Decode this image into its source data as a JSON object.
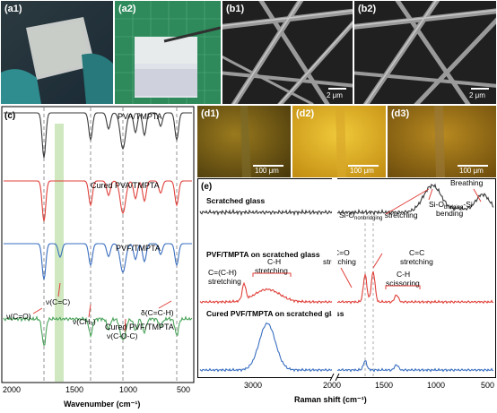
{
  "photos": {
    "a1": {
      "label": "(a1)"
    },
    "a2": {
      "label": "(a2)"
    },
    "b1": {
      "label": "(b1)",
      "scale": "2 μm"
    },
    "b2": {
      "label": "(b2)",
      "scale": "2 μm"
    },
    "d1": {
      "label": "(d1)",
      "scale": "100 μm"
    },
    "d2": {
      "label": "(d2)",
      "scale": "100 μm"
    },
    "d3": {
      "label": "(d3)",
      "scale": "100 μm"
    }
  },
  "ftir": {
    "panel_label": "(c)",
    "spectra": [
      "PVA/TMPTA",
      "Cured PVA/TMPTA",
      "PVF/TMPTA",
      "Cured PVF/TMPTA"
    ],
    "annotations": {
      "cc": "ν(C=C)",
      "ch3": "ν(CH₃)",
      "coc": "ν(C-O-C)",
      "co": "ν(C=O)",
      "dch": "δ(C=C-H)"
    },
    "x_ticks": [
      "2000",
      "1500",
      "1000",
      "500"
    ],
    "xlabel": "Wavenumber (cm⁻¹)"
  },
  "raman": {
    "panel_label": "(e)",
    "spectra": [
      "Scratched glass",
      "PVF/TMPTA on scratched glass",
      "Cured PVF/TMPTA on scratched glass"
    ],
    "annotations": {
      "breathing": "Breathing",
      "sionb": "Si-O",
      "sionb_sub": "nonbridging",
      "sionb_suffix": " stretching",
      "siob_a": "Si-O",
      "siob_sub": "bridging",
      "siob_b": "-Si",
      "siob_c": "bending",
      "cch": "C=(C-H)",
      "cch2": "stretching",
      "ch": "C-H",
      "ch2": "stretching",
      "co": "C=O",
      "co2": "stretching",
      "cc": "C=C",
      "cc2": "stretching",
      "chs": "C-H",
      "chs2": "scissoring"
    },
    "x_ticks": [
      "3000",
      "2000",
      "1500",
      "1000",
      "500"
    ],
    "xlabel": "Raman shift (cm⁻¹)"
  },
  "colors": {
    "black": "#3a3a3a",
    "red": "#e0403a",
    "blue": "#3a6fc0",
    "green": "#4aa35a",
    "highlight": "#cfe8c0"
  }
}
